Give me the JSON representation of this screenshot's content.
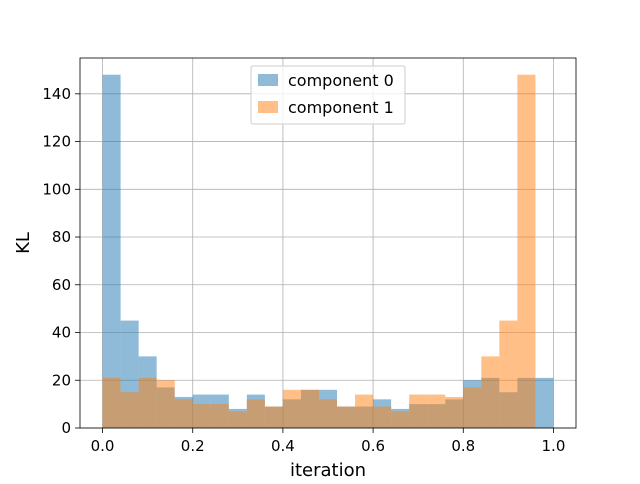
{
  "chart_data": {
    "type": "bar",
    "subtype": "histogram",
    "title": "",
    "xlabel": "iteration",
    "ylabel": "KL",
    "xlim": [
      -0.05,
      1.05
    ],
    "ylim": [
      0,
      155
    ],
    "xticks": [
      0.0,
      0.2,
      0.4,
      0.6,
      0.8,
      1.0
    ],
    "xtick_labels": [
      "0.0",
      "0.2",
      "0.4",
      "0.6",
      "0.8",
      "1.0"
    ],
    "yticks": [
      0,
      20,
      40,
      60,
      80,
      100,
      120,
      140
    ],
    "ytick_labels": [
      "0",
      "20",
      "40",
      "60",
      "80",
      "100",
      "120",
      "140"
    ],
    "grid": true,
    "legend_position": "upper center",
    "bins": 25,
    "bin_range": [
      0.0,
      1.0
    ],
    "series": [
      {
        "name": "component 0",
        "color": "#1f77b4",
        "alpha": 0.5,
        "values": [
          148,
          45,
          30,
          17,
          13,
          14,
          14,
          8,
          14,
          9,
          12,
          16,
          16,
          9,
          9,
          12,
          8,
          10,
          10,
          12,
          20,
          21,
          15,
          21,
          21
        ]
      },
      {
        "name": "component 1",
        "color": "#ff7f0e",
        "alpha": 0.5,
        "values": [
          21,
          15,
          21,
          20,
          12,
          10,
          10,
          7,
          12,
          9,
          16,
          16,
          12,
          9,
          14,
          9,
          7,
          14,
          14,
          13,
          17,
          30,
          45,
          148,
          0
        ]
      }
    ]
  }
}
